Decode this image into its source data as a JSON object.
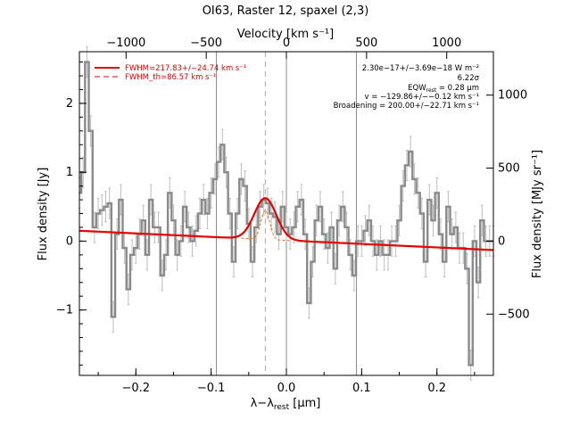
{
  "chart_data": {
    "type": "line",
    "title": "OI63, Raster 12, spaxel (2,3)",
    "xlabel_main": "λ−λ",
    "xlabel_sub": "rest",
    "xlabel_unit": " [μm]",
    "ylabel_left": "Flux density [Jy]",
    "ylabel_right": "Flux density [MJy sr⁻¹]",
    "top_axis_label": "Velocity [km s⁻¹]",
    "xlim": [
      -0.275,
      0.275
    ],
    "ylim": [
      -1.95,
      2.75
    ],
    "x_ticks": [
      {
        "v": -0.2,
        "label": "−0.2"
      },
      {
        "v": -0.1,
        "label": "−0.1"
      },
      {
        "v": 0.0,
        "label": "0.0"
      },
      {
        "v": 0.1,
        "label": "0.1"
      },
      {
        "v": 0.2,
        "label": "0.2"
      }
    ],
    "y_ticks": [
      {
        "v": -1,
        "label": "−1"
      },
      {
        "v": 0,
        "label": "0"
      },
      {
        "v": 1,
        "label": "1"
      },
      {
        "v": 2,
        "label": "2"
      }
    ],
    "velocity_ticks": [
      {
        "x": -0.213,
        "label": "−1000"
      },
      {
        "x": -0.1065,
        "label": "−500"
      },
      {
        "x": 0.0,
        "label": "0"
      },
      {
        "x": 0.1065,
        "label": "500"
      },
      {
        "x": 0.213,
        "label": "1000"
      }
    ],
    "right_ticks": [
      {
        "y": -1.06,
        "label": "−500"
      },
      {
        "y": 0.0,
        "label": "0"
      },
      {
        "y": 1.06,
        "label": "500"
      },
      {
        "y": 2.12,
        "label": "1000"
      }
    ],
    "vlines_solid": [
      -0.093,
      0.0,
      0.093
    ],
    "vline_dashed": -0.028,
    "legend": [
      {
        "label": "FWHM=217.83+/−24.74 km s⁻¹",
        "style": "solid"
      },
      {
        "label": "FWHM_th=86.57 km s⁻¹",
        "style": "dashed"
      }
    ],
    "annotations": [
      "2.30e−17+/−3.69e−18 W m⁻²",
      "6.22σ",
      "EQW",
      "rest",
      " = 0.28 μm",
      "v = −129.86+/−−0.12 km s⁻¹",
      "Broadening = 200.00+/−22.71 km s⁻¹"
    ],
    "spectrum": {
      "x": [
        -0.275,
        -0.27,
        -0.265,
        -0.26,
        -0.255,
        -0.25,
        -0.245,
        -0.24,
        -0.235,
        -0.23,
        -0.225,
        -0.22,
        -0.215,
        -0.21,
        -0.205,
        -0.2,
        -0.195,
        -0.19,
        -0.185,
        -0.18,
        -0.175,
        -0.17,
        -0.165,
        -0.16,
        -0.155,
        -0.15,
        -0.145,
        -0.14,
        -0.135,
        -0.13,
        -0.125,
        -0.12,
        -0.115,
        -0.11,
        -0.105,
        -0.1,
        -0.095,
        -0.09,
        -0.085,
        -0.08,
        -0.075,
        -0.07,
        -0.065,
        -0.06,
        -0.055,
        -0.05,
        -0.045,
        -0.04,
        -0.035,
        -0.03,
        -0.025,
        -0.02,
        -0.015,
        -0.01,
        -0.005,
        0.0,
        0.005,
        0.01,
        0.015,
        0.02,
        0.025,
        0.03,
        0.035,
        0.04,
        0.045,
        0.05,
        0.055,
        0.06,
        0.065,
        0.07,
        0.075,
        0.08,
        0.085,
        0.09,
        0.095,
        0.1,
        0.105,
        0.11,
        0.115,
        0.12,
        0.125,
        0.13,
        0.135,
        0.14,
        0.145,
        0.15,
        0.155,
        0.16,
        0.165,
        0.17,
        0.175,
        0.18,
        0.185,
        0.19,
        0.195,
        0.2,
        0.205,
        0.21,
        0.215,
        0.22,
        0.225,
        0.23,
        0.235,
        0.24,
        0.245,
        0.25,
        0.255,
        0.26,
        0.265,
        0.27,
        0.275
      ],
      "y": [
        0.7,
        1.0,
        2.6,
        1.6,
        0.2,
        0.4,
        0.45,
        0.5,
        0.55,
        -1.1,
        0.1,
        0.6,
        -0.1,
        -0.7,
        -0.2,
        -0.1,
        0.1,
        0.3,
        -0.2,
        0.6,
        0.2,
        0.2,
        -0.5,
        -0.2,
        0.7,
        0.3,
        -0.2,
        0.0,
        0.5,
        0.2,
        0.0,
        0.15,
        0.4,
        0.6,
        0.4,
        0.7,
        0.9,
        1.15,
        1.4,
        1.0,
        0.4,
        -0.3,
        0.4,
        0.9,
        0.8,
        0.25,
        -0.3,
        0.2,
        0.5,
        0.6,
        0.55,
        0.4,
        0.35,
        0.1,
        0.5,
        0.2,
        0.1,
        0.2,
        0.5,
        0.6,
        0.1,
        -0.9,
        -0.3,
        0.3,
        0.5,
        0.1,
        -0.1,
        0.2,
        -0.4,
        0.3,
        0.5,
        0.2,
        -0.2,
        -0.5,
        0.0,
        0.0,
        0.15,
        0.3,
        0.0,
        -0.2,
        0.0,
        -0.2,
        -0.2,
        0.0,
        0.0,
        0.3,
        0.8,
        1.1,
        1.3,
        0.9,
        0.7,
        0.4,
        -0.3,
        0.6,
        0.3,
        0.7,
        0.1,
        -0.3,
        0.5,
        0.1,
        0.2,
        -0.1,
        -0.1,
        -0.4,
        -1.8,
        0.0,
        -0.6,
        0.3,
        0.0,
        0.0,
        0.0
      ],
      "err": 0.22
    },
    "continuum": {
      "x": [
        -0.275,
        0.275
      ],
      "y": [
        0.15,
        -0.13
      ]
    },
    "gauss_fit": {
      "center": -0.028,
      "amp": 0.6,
      "sigma": 0.0146
    },
    "gauss_th": {
      "center": -0.028,
      "amp": 0.42,
      "sigma": 0.0058
    }
  }
}
